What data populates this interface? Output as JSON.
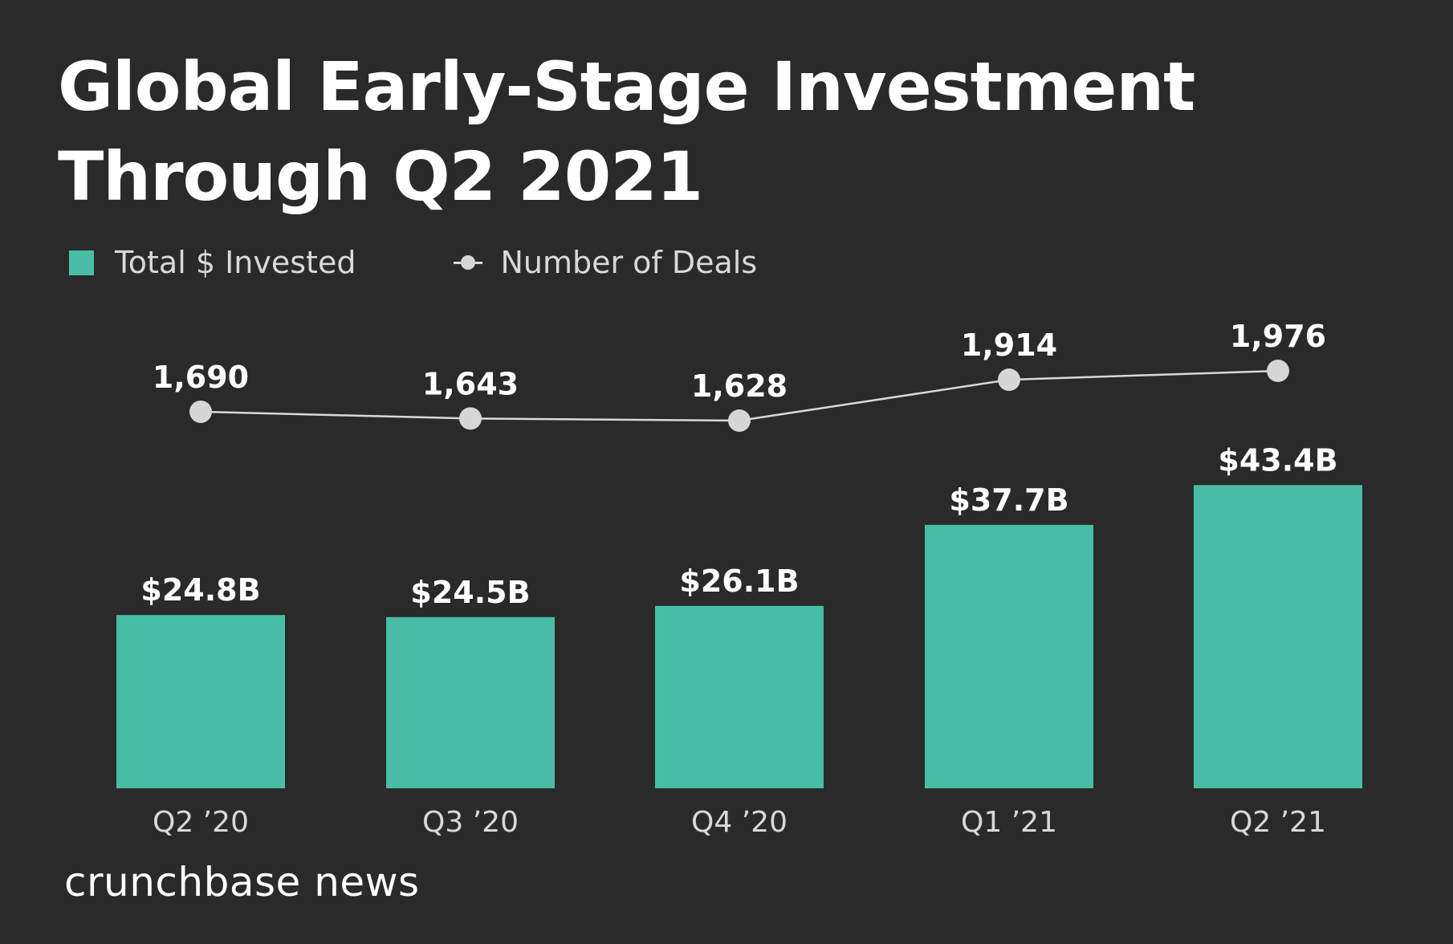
{
  "colors": {
    "background": "#2a2a2a",
    "bar": "#48bea6",
    "line": "#d9d9d9",
    "marker": "#d6d6d6",
    "text": "#ffffff",
    "axis_text": "#d9d9d9"
  },
  "brand": "crunchbase news",
  "chart_data": {
    "type": "bar",
    "title": "Global Early-Stage Investment Through Q2 2021",
    "categories": [
      "Q2 ’20",
      "Q3 ’20",
      "Q4 ’20",
      "Q1 ’21",
      "Q2 ’21"
    ],
    "series": [
      {
        "name": "Total $ Invested",
        "type": "bar",
        "values": [
          24.8,
          24.5,
          26.1,
          37.7,
          43.4
        ],
        "labels": [
          "$24.8B",
          "$24.5B",
          "$26.1B",
          "$37.7B",
          "$43.4B"
        ]
      },
      {
        "name": "Number of Deals",
        "type": "line",
        "values": [
          1690,
          1643,
          1628,
          1914,
          1976
        ],
        "labels": [
          "1,690",
          "1,643",
          "1,628",
          "1,914",
          "1,976"
        ]
      }
    ],
    "xlabel": "",
    "ylabel": "",
    "grid": false,
    "legend": "top-left"
  }
}
